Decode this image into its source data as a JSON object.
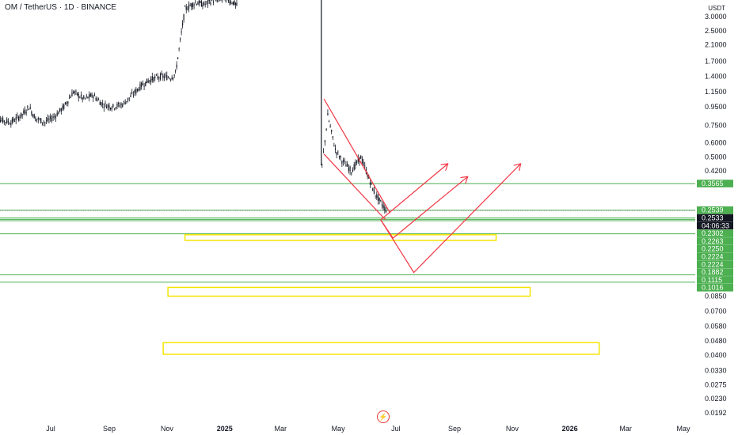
{
  "header": {
    "title": "OM / TetherUS · 1D · BINANCE",
    "currency": "USDT"
  },
  "colors": {
    "green": "#4caf50",
    "yellow": "#f5e500",
    "red": "#f23645",
    "candle": "#131722",
    "price_tag": "#131722"
  },
  "footer": {
    "logo_icon": "lightning-icon"
  },
  "chart_data": {
    "type": "candlestick",
    "title": "OM / TetherUS · 1D · BINANCE",
    "y_scale": "log",
    "y_ticks": [
      3.0,
      2.5,
      2.1,
      1.7,
      1.4,
      1.15,
      0.95,
      0.75,
      0.6,
      0.5,
      0.42,
      0.085,
      0.07,
      0.058,
      0.048,
      0.04,
      0.033,
      0.0275,
      0.023,
      0.0192
    ],
    "y_tick_labels": [
      "3.0000",
      "2.5000",
      "2.1000",
      "1.7000",
      "1.4000",
      "1.1500",
      "0.9500",
      "0.7500",
      "0.6000",
      "0.5000",
      "0.4200",
      "0.0850",
      "0.0700",
      "0.0580",
      "0.0480",
      "0.0400",
      "0.0330",
      "0.0275",
      "0.0230",
      "0.0192"
    ],
    "x_labels": [
      {
        "label": "Jul",
        "date": "2024-07-01"
      },
      {
        "label": "Sep",
        "date": "2024-09-01"
      },
      {
        "label": "Nov",
        "date": "2024-11-01"
      },
      {
        "label": "2025",
        "date": "2025-01-01",
        "bold": true
      },
      {
        "label": "Mar",
        "date": "2025-03-01"
      },
      {
        "label": "May",
        "date": "2025-05-01"
      },
      {
        "label": "Jul",
        "date": "2025-07-01"
      },
      {
        "label": "Sep",
        "date": "2025-09-01"
      },
      {
        "label": "Nov",
        "date": "2025-11-01"
      },
      {
        "label": "2026",
        "date": "2026-01-01",
        "bold": true
      },
      {
        "label": "Mar",
        "date": "2026-03-01"
      },
      {
        "label": "May",
        "date": "2026-05-01"
      }
    ],
    "price_tags": [
      {
        "label": "0.3565",
        "value": 0.3565,
        "kind": "green"
      },
      {
        "label": "0.2539",
        "value": 0.2539,
        "kind": "green"
      },
      {
        "label": "0.2533",
        "value": 0.2533,
        "kind": "current"
      },
      {
        "label": "04:06:33",
        "value": 0.2533,
        "kind": "countdown"
      },
      {
        "label": "0.2302",
        "value": 0.2302,
        "kind": "green"
      },
      {
        "label": "0.2263",
        "value": 0.2263,
        "kind": "green"
      },
      {
        "label": "0.2250",
        "value": 0.225,
        "kind": "green"
      },
      {
        "label": "0.2224",
        "value": 0.2224,
        "kind": "green"
      },
      {
        "label": "0.2224",
        "value": 0.2224,
        "kind": "green"
      },
      {
        "label": "0.1882",
        "value": 0.1882,
        "kind": "green"
      },
      {
        "label": "0.1115",
        "value": 0.1115,
        "kind": "green"
      },
      {
        "label": "0.1016",
        "value": 0.1016,
        "kind": "green"
      }
    ],
    "horizontal_levels": [
      0.3565,
      0.2539,
      0.2302,
      0.2263,
      0.2224,
      0.1882,
      0.1115,
      0.1016
    ],
    "zones": [
      {
        "x0": "2024-11-20",
        "x1": "2025-10-15",
        "y_top": 0.186,
        "y_bottom": 0.173
      },
      {
        "x0": "2024-11-02",
        "x1": "2025-11-20",
        "y_top": 0.095,
        "y_bottom": 0.085
      },
      {
        "x0": "2024-10-28",
        "x1": "2026-02-01",
        "y_top": 0.047,
        "y_bottom": 0.0405
      }
    ],
    "drawings": [
      {
        "kind": "channel_upper",
        "from": {
          "date": "2025-04-16",
          "value": 1.05
        },
        "to": {
          "date": "2025-06-25",
          "value": 0.245
        }
      },
      {
        "kind": "channel_lower",
        "from": {
          "date": "2025-04-16",
          "value": 0.52
        },
        "to": {
          "date": "2025-06-20",
          "value": 0.225
        }
      },
      {
        "kind": "arrow",
        "points": [
          {
            "date": "2025-06-15",
            "value": 0.225
          },
          {
            "date": "2025-08-25",
            "value": 0.46
          }
        ]
      },
      {
        "kind": "arrow",
        "points": [
          {
            "date": "2025-06-15",
            "value": 0.225
          },
          {
            "date": "2025-06-28",
            "value": 0.178
          },
          {
            "date": "2025-09-15",
            "value": 0.39
          }
        ]
      },
      {
        "kind": "arrow",
        "points": [
          {
            "date": "2025-06-15",
            "value": 0.225
          },
          {
            "date": "2025-07-20",
            "value": 0.115
          },
          {
            "date": "2025-11-10",
            "value": 0.46
          }
        ]
      }
    ],
    "price_path": [
      {
        "date": "2024-05-01",
        "value": 0.85
      },
      {
        "date": "2024-05-10",
        "value": 0.8
      },
      {
        "date": "2024-05-20",
        "value": 0.78
      },
      {
        "date": "2024-06-01",
        "value": 0.86
      },
      {
        "date": "2024-06-08",
        "value": 0.95
      },
      {
        "date": "2024-06-15",
        "value": 0.82
      },
      {
        "date": "2024-06-25",
        "value": 0.78
      },
      {
        "date": "2024-07-05",
        "value": 0.84
      },
      {
        "date": "2024-07-15",
        "value": 0.95
      },
      {
        "date": "2024-07-25",
        "value": 1.15
      },
      {
        "date": "2024-08-05",
        "value": 1.05
      },
      {
        "date": "2024-08-15",
        "value": 1.1
      },
      {
        "date": "2024-08-25",
        "value": 0.98
      },
      {
        "date": "2024-09-05",
        "value": 0.95
      },
      {
        "date": "2024-09-15",
        "value": 0.98
      },
      {
        "date": "2024-09-25",
        "value": 1.1
      },
      {
        "date": "2024-10-05",
        "value": 1.25
      },
      {
        "date": "2024-10-15",
        "value": 1.35
      },
      {
        "date": "2024-10-25",
        "value": 1.4
      },
      {
        "date": "2024-11-05",
        "value": 1.38
      },
      {
        "date": "2024-11-10",
        "value": 1.45
      },
      {
        "date": "2024-11-15",
        "value": 2.2
      },
      {
        "date": "2024-11-20",
        "value": 3.3
      },
      {
        "date": "2024-12-01",
        "value": 3.6
      },
      {
        "date": "2024-12-10",
        "value": 3.5
      },
      {
        "date": "2024-12-20",
        "value": 3.7
      },
      {
        "date": "2025-01-01",
        "value": 3.8
      },
      {
        "date": "2025-01-10",
        "value": 3.6
      },
      {
        "date": "2025-01-15",
        "value": 3.4
      },
      {
        "date": "2025-04-12",
        "value": 6.0
      },
      {
        "date": "2025-04-14",
        "value": 0.45
      },
      {
        "date": "2025-04-20",
        "value": 0.85
      },
      {
        "date": "2025-04-28",
        "value": 0.55
      },
      {
        "date": "2025-05-05",
        "value": 0.48
      },
      {
        "date": "2025-05-15",
        "value": 0.42
      },
      {
        "date": "2025-05-25",
        "value": 0.5
      },
      {
        "date": "2025-06-01",
        "value": 0.4
      },
      {
        "date": "2025-06-08",
        "value": 0.32
      },
      {
        "date": "2025-06-15",
        "value": 0.28
      },
      {
        "date": "2025-06-22",
        "value": 0.25
      }
    ]
  }
}
